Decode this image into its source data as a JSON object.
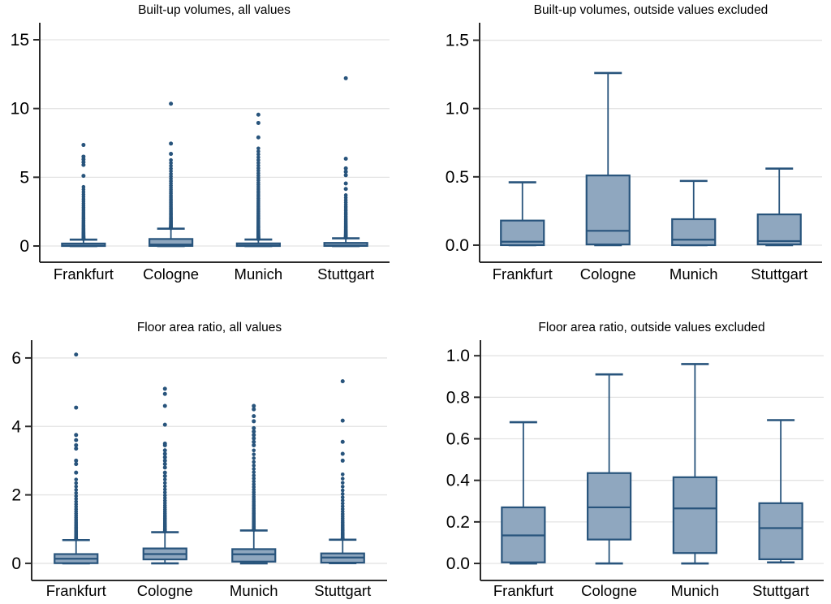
{
  "page": {
    "background": "#ffffff"
  },
  "palette": {
    "box_fill": "#8fa7bf",
    "line": "#28547c",
    "grid": "#e3e3e3",
    "axis": "#2b2b2b",
    "text": "#000000"
  },
  "chart_data": [
    {
      "type": "box",
      "title": "Built-up volumes, all values",
      "categories": [
        "Frankfurt",
        "Cologne",
        "Munich",
        "Stuttgart"
      ],
      "ylim": [
        -1.18,
        16.24
      ],
      "yticks": [
        {
          "v": 0,
          "label": "0"
        },
        {
          "v": 5,
          "label": "5"
        },
        {
          "v": 10,
          "label": "10"
        },
        {
          "v": 15,
          "label": "15"
        }
      ],
      "grid": true,
      "legend": "none",
      "boxes": [
        {
          "category": "Frankfurt",
          "q1": 0.0,
          "median": 0.025,
          "q3": 0.18,
          "whisker_low": 0.0,
          "whisker_high": 0.46,
          "outlier_column": {
            "min": 0.5,
            "max": 4.3,
            "count": 60
          },
          "outliers_far": [
            5.1,
            5.9,
            6.1,
            6.3,
            6.5,
            7.35
          ]
        },
        {
          "category": "Cologne",
          "q1": 0.005,
          "median": 0.105,
          "q3": 0.51,
          "whisker_low": 0.0,
          "whisker_high": 1.26,
          "outlier_column": {
            "min": 1.3,
            "max": 6.25,
            "count": 70
          },
          "outliers_far": [
            6.7,
            7.45,
            10.35
          ]
        },
        {
          "category": "Munich",
          "q1": 0.0,
          "median": 0.04,
          "q3": 0.19,
          "whisker_low": 0.0,
          "whisker_high": 0.47,
          "outlier_column": {
            "min": 0.5,
            "max": 7.1,
            "count": 90
          },
          "outliers_far": [
            7.9,
            8.95,
            9.55
          ]
        },
        {
          "category": "Stuttgart",
          "q1": 0.005,
          "median": 0.03,
          "q3": 0.225,
          "whisker_low": 0.0,
          "whisker_high": 0.56,
          "outlier_column": {
            "min": 0.6,
            "max": 3.7,
            "count": 50
          },
          "outliers_far": [
            4.15,
            4.55,
            5.15,
            5.4,
            5.65,
            6.35,
            12.2
          ]
        }
      ]
    },
    {
      "type": "box",
      "title": "Built-up volumes, outside values excluded",
      "categories": [
        "Frankfurt",
        "Cologne",
        "Munich",
        "Stuttgart"
      ],
      "ylim": [
        -0.125,
        1.628
      ],
      "yticks": [
        {
          "v": 0.0,
          "label": "0.0"
        },
        {
          "v": 0.5,
          "label": "0.5"
        },
        {
          "v": 1.0,
          "label": "1.0"
        },
        {
          "v": 1.5,
          "label": "1.5"
        }
      ],
      "grid": true,
      "legend": "none",
      "boxes": [
        {
          "category": "Frankfurt",
          "q1": 0.0,
          "median": 0.025,
          "q3": 0.18,
          "whisker_low": 0.0,
          "whisker_high": 0.46
        },
        {
          "category": "Cologne",
          "q1": 0.005,
          "median": 0.105,
          "q3": 0.51,
          "whisker_low": 0.0,
          "whisker_high": 1.26
        },
        {
          "category": "Munich",
          "q1": 0.0,
          "median": 0.04,
          "q3": 0.19,
          "whisker_low": 0.0,
          "whisker_high": 0.47
        },
        {
          "category": "Stuttgart",
          "q1": 0.005,
          "median": 0.03,
          "q3": 0.225,
          "whisker_low": 0.0,
          "whisker_high": 0.56
        }
      ]
    },
    {
      "type": "box",
      "title": "Floor area ratio, all values",
      "categories": [
        "Frankfurt",
        "Cologne",
        "Munich",
        "Stuttgart"
      ],
      "ylim": [
        -0.5,
        6.52
      ],
      "yticks": [
        {
          "v": 0,
          "label": "0"
        },
        {
          "v": 2,
          "label": "2"
        },
        {
          "v": 4,
          "label": "4"
        },
        {
          "v": 6,
          "label": "6"
        }
      ],
      "grid": true,
      "legend": "none",
      "boxes": [
        {
          "category": "Frankfurt",
          "q1": 0.005,
          "median": 0.135,
          "q3": 0.27,
          "whisker_low": 0.0,
          "whisker_high": 0.68,
          "outlier_column": {
            "min": 0.7,
            "max": 2.45,
            "count": 50
          },
          "outliers_far": [
            2.65,
            2.9,
            3.0,
            3.35,
            3.45,
            3.6,
            3.75,
            4.55,
            6.1
          ]
        },
        {
          "category": "Cologne",
          "q1": 0.115,
          "median": 0.27,
          "q3": 0.435,
          "whisker_low": 0.0,
          "whisker_high": 0.91,
          "outlier_column": {
            "min": 0.93,
            "max": 2.45,
            "count": 45
          },
          "outliers_far": [
            2.55,
            2.65,
            2.8,
            2.9,
            3.0,
            3.1,
            3.2,
            3.3,
            3.45,
            3.5,
            4.05,
            4.6,
            4.95,
            5.1
          ]
        },
        {
          "category": "Munich",
          "q1": 0.05,
          "median": 0.265,
          "q3": 0.415,
          "whisker_low": 0.0,
          "whisker_high": 0.96,
          "outlier_column": {
            "min": 0.98,
            "max": 3.3,
            "count": 60
          },
          "outliers_far": [
            3.45,
            3.55,
            3.65,
            3.75,
            3.85,
            3.95,
            4.15,
            4.3,
            4.5,
            4.6
          ]
        },
        {
          "category": "Stuttgart",
          "q1": 0.02,
          "median": 0.17,
          "q3": 0.29,
          "whisker_low": 0.005,
          "whisker_high": 0.69,
          "outlier_column": {
            "min": 0.72,
            "max": 2.6,
            "count": 45
          },
          "outliers_far": [
            3.0,
            3.2,
            3.55,
            4.17,
            5.32
          ]
        }
      ]
    },
    {
      "type": "box",
      "title": "Floor area ratio, outside values excluded",
      "categories": [
        "Frankfurt",
        "Cologne",
        "Munich",
        "Stuttgart"
      ],
      "ylim": [
        -0.082,
        1.075
      ],
      "yticks": [
        {
          "v": 0.0,
          "label": "0.0"
        },
        {
          "v": 0.2,
          "label": "0.2"
        },
        {
          "v": 0.4,
          "label": "0.4"
        },
        {
          "v": 0.6,
          "label": "0.6"
        },
        {
          "v": 0.8,
          "label": "0.8"
        },
        {
          "v": 1.0,
          "label": "1.0"
        }
      ],
      "grid": true,
      "legend": "none",
      "boxes": [
        {
          "category": "Frankfurt",
          "q1": 0.005,
          "median": 0.135,
          "q3": 0.27,
          "whisker_low": 0.0,
          "whisker_high": 0.68
        },
        {
          "category": "Cologne",
          "q1": 0.115,
          "median": 0.27,
          "q3": 0.435,
          "whisker_low": 0.0,
          "whisker_high": 0.91
        },
        {
          "category": "Munich",
          "q1": 0.05,
          "median": 0.265,
          "q3": 0.415,
          "whisker_low": 0.0,
          "whisker_high": 0.96
        },
        {
          "category": "Stuttgart",
          "q1": 0.02,
          "median": 0.17,
          "q3": 0.29,
          "whisker_low": 0.005,
          "whisker_high": 0.69
        }
      ]
    }
  ]
}
